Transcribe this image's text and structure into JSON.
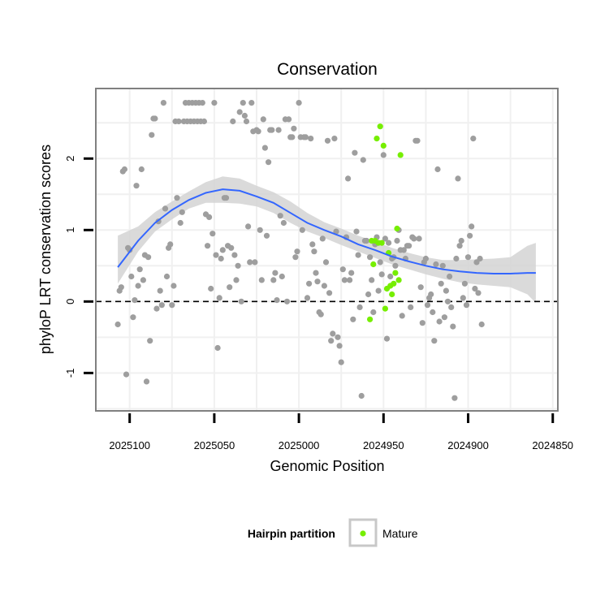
{
  "colors": {
    "background": "#ffffff",
    "grid": "#f0f0f0",
    "panel_border": "#808080",
    "point_other": "#9e9e9e",
    "point_mature": "#76ee00",
    "smooth_line": "#3366ff",
    "confidence_band": "#d3d3d3",
    "zero_line": "#000000",
    "legend_key_border": "#c8c8c8"
  },
  "chart_data": {
    "type": "scatter",
    "title": "Conservation",
    "xlabel": "Genomic Position",
    "ylabel": "phyloP LRT conservation scores",
    "x_reversed": true,
    "xlim": [
      2025120,
      2024847
    ],
    "ylim": [
      -1.53,
      2.98
    ],
    "x_ticks": [
      2025100,
      2025050,
      2025000,
      2024950,
      2024900,
      2024850
    ],
    "x_tick_labels": [
      "2025100",
      "2025050",
      "2025000",
      "2024950",
      "2024900",
      "2024850"
    ],
    "y_ticks": [
      -1,
      0,
      1,
      2
    ],
    "y_tick_labels": [
      "-1",
      "0",
      "1",
      "2"
    ],
    "grid": true,
    "reference_line": {
      "y": 0,
      "style": "dashed"
    },
    "legend": {
      "title": "Hairpin partition",
      "position": "bottom",
      "entries": [
        {
          "label": "Mature",
          "color": "#76ee00"
        }
      ]
    },
    "series": [
      {
        "name": "Other",
        "color": "#9e9e9e",
        "points": [
          [
            2025107,
            -0.32
          ],
          [
            2025106,
            0.15
          ],
          [
            2025105,
            0.2
          ],
          [
            2025104,
            1.82
          ],
          [
            2025103,
            1.85
          ],
          [
            2025102,
            -1.02
          ],
          [
            2025101,
            0.75
          ],
          [
            2025100,
            0.72
          ],
          [
            2025099,
            0.35
          ],
          [
            2025098,
            -0.22
          ],
          [
            2025097,
            0.02
          ],
          [
            2025096,
            1.62
          ],
          [
            2025095,
            0.22
          ],
          [
            2025094,
            0.45
          ],
          [
            2025093,
            1.85
          ],
          [
            2025092,
            0.3
          ],
          [
            2025091,
            0.65
          ],
          [
            2025090,
            -1.12
          ],
          [
            2025089,
            0.62
          ],
          [
            2025088,
            -0.55
          ],
          [
            2025087,
            2.33
          ],
          [
            2025086,
            2.56
          ],
          [
            2025085,
            2.56
          ],
          [
            2025084,
            -0.1
          ],
          [
            2025083,
            1.12
          ],
          [
            2025082,
            0.15
          ],
          [
            2025081,
            -0.05
          ],
          [
            2025080,
            2.78
          ],
          [
            2025079,
            1.3
          ],
          [
            2025078,
            0.35
          ],
          [
            2025077,
            0.75
          ],
          [
            2025076,
            0.8
          ],
          [
            2025075,
            -0.05
          ],
          [
            2025074,
            0.22
          ],
          [
            2025073,
            2.52
          ],
          [
            2025072,
            1.45
          ],
          [
            2025071,
            2.52
          ],
          [
            2025070,
            1.1
          ],
          [
            2025069,
            1.25
          ],
          [
            2025068,
            2.52
          ],
          [
            2025067,
            2.78
          ],
          [
            2025066,
            2.52
          ],
          [
            2025065,
            2.78
          ],
          [
            2025064,
            2.52
          ],
          [
            2025063,
            2.78
          ],
          [
            2025062,
            2.52
          ],
          [
            2025061,
            2.78
          ],
          [
            2025060,
            2.52
          ],
          [
            2025059,
            2.78
          ],
          [
            2025058,
            2.52
          ],
          [
            2025057,
            2.78
          ],
          [
            2025056,
            2.52
          ],
          [
            2025055,
            1.22
          ],
          [
            2025054,
            0.78
          ],
          [
            2025053,
            1.18
          ],
          [
            2025052,
            0.18
          ],
          [
            2025051,
            0.95
          ],
          [
            2025050,
            2.78
          ],
          [
            2025049,
            0.65
          ],
          [
            2025048,
            -0.65
          ],
          [
            2025047,
            0.05
          ],
          [
            2025046,
            0.6
          ],
          [
            2025045,
            0.72
          ],
          [
            2025044,
            1.45
          ],
          [
            2025043,
            1.45
          ],
          [
            2025042,
            0.78
          ],
          [
            2025041,
            0.2
          ],
          [
            2025040,
            0.75
          ],
          [
            2025039,
            2.52
          ],
          [
            2025038,
            0.65
          ],
          [
            2025037,
            0.3
          ],
          [
            2025036,
            0.5
          ],
          [
            2025035,
            2.65
          ],
          [
            2025034,
            0.0
          ],
          [
            2025033,
            2.78
          ],
          [
            2025032,
            2.6
          ],
          [
            2025031,
            2.52
          ],
          [
            2025030,
            1.05
          ],
          [
            2025029,
            0.55
          ],
          [
            2025028,
            2.78
          ],
          [
            2025027,
            2.38
          ],
          [
            2025026,
            0.55
          ],
          [
            2025025,
            2.4
          ],
          [
            2025024,
            2.38
          ],
          [
            2025023,
            1.0
          ],
          [
            2025022,
            0.3
          ],
          [
            2025021,
            2.55
          ],
          [
            2025020,
            2.15
          ],
          [
            2025019,
            0.92
          ],
          [
            2025018,
            1.95
          ],
          [
            2025017,
            2.4
          ],
          [
            2025016,
            2.4
          ],
          [
            2025015,
            0.3
          ],
          [
            2025014,
            0.4
          ],
          [
            2025013,
            0.02
          ],
          [
            2025012,
            2.4
          ],
          [
            2025011,
            1.2
          ],
          [
            2025010,
            0.35
          ],
          [
            2025009,
            1.1
          ],
          [
            2025008,
            2.55
          ],
          [
            2025007,
            0.0
          ],
          [
            2025006,
            2.55
          ],
          [
            2025005,
            2.3
          ],
          [
            2025004,
            2.3
          ],
          [
            2025003,
            2.42
          ],
          [
            2025002,
            0.62
          ],
          [
            2025001,
            0.7
          ],
          [
            2025000,
            2.78
          ],
          [
            2024999,
            2.3
          ],
          [
            2024998,
            1.0
          ],
          [
            2024997,
            2.3
          ],
          [
            2024996,
            2.3
          ],
          [
            2024995,
            0.05
          ],
          [
            2024994,
            0.25
          ],
          [
            2024993,
            2.28
          ],
          [
            2024992,
            0.8
          ],
          [
            2024991,
            0.7
          ],
          [
            2024990,
            0.4
          ],
          [
            2024989,
            0.28
          ],
          [
            2024988,
            -0.15
          ],
          [
            2024987,
            -0.18
          ],
          [
            2024986,
            0.88
          ],
          [
            2024985,
            0.22
          ],
          [
            2024984,
            0.55
          ],
          [
            2024983,
            2.25
          ],
          [
            2024982,
            0.12
          ],
          [
            2024981,
            -0.55
          ],
          [
            2024980,
            -0.45
          ],
          [
            2024979,
            2.28
          ],
          [
            2024978,
            0.98
          ],
          [
            2024977,
            -0.5
          ],
          [
            2024976,
            -0.62
          ],
          [
            2024975,
            -0.85
          ],
          [
            2024974,
            0.45
          ],
          [
            2024973,
            0.3
          ],
          [
            2024972,
            0.9
          ],
          [
            2024971,
            1.72
          ],
          [
            2024970,
            0.3
          ],
          [
            2024969,
            0.4
          ],
          [
            2024968,
            -0.25
          ],
          [
            2024967,
            2.08
          ],
          [
            2024966,
            0.98
          ],
          [
            2024965,
            0.65
          ],
          [
            2024964,
            -0.08
          ],
          [
            2024963,
            -1.32
          ],
          [
            2024962,
            1.98
          ],
          [
            2024961,
            0.85
          ],
          [
            2024960,
            0.85
          ],
          [
            2024959,
            0.1
          ],
          [
            2024958,
            0.62
          ],
          [
            2024957,
            0.3
          ],
          [
            2024956,
            -0.15
          ],
          [
            2024955,
            0.8
          ],
          [
            2024954,
            0.9
          ],
          [
            2024953,
            0.15
          ],
          [
            2024952,
            0.55
          ],
          [
            2024951,
            0.38
          ],
          [
            2024950,
            2.05
          ],
          [
            2024949,
            0.88
          ],
          [
            2024948,
            -0.52
          ],
          [
            2024947,
            0.82
          ],
          [
            2024946,
            0.35
          ],
          [
            2024945,
            0.6
          ],
          [
            2024944,
            0.62
          ],
          [
            2024943,
            0.5
          ],
          [
            2024942,
            0.85
          ],
          [
            2024941,
            1.0
          ],
          [
            2024940,
            0.72
          ],
          [
            2024939,
            -0.2
          ],
          [
            2024938,
            0.72
          ],
          [
            2024937,
            0.6
          ],
          [
            2024936,
            0.78
          ],
          [
            2024935,
            0.78
          ],
          [
            2024934,
            -0.08
          ],
          [
            2024933,
            0.9
          ],
          [
            2024932,
            0.88
          ],
          [
            2024931,
            2.25
          ],
          [
            2024930,
            2.25
          ],
          [
            2024929,
            0.88
          ],
          [
            2024928,
            0.2
          ],
          [
            2024927,
            -0.3
          ],
          [
            2024926,
            0.55
          ],
          [
            2024925,
            0.6
          ],
          [
            2024924,
            -0.05
          ],
          [
            2024923,
            0.05
          ],
          [
            2024922,
            0.1
          ],
          [
            2024921,
            -0.15
          ],
          [
            2024920,
            -0.55
          ],
          [
            2024919,
            0.52
          ],
          [
            2024918,
            1.85
          ],
          [
            2024917,
            -0.28
          ],
          [
            2024916,
            0.25
          ],
          [
            2024915,
            0.5
          ],
          [
            2024914,
            -0.22
          ],
          [
            2024913,
            0.15
          ],
          [
            2024912,
            0.0
          ],
          [
            2024911,
            0.35
          ],
          [
            2024910,
            -0.08
          ],
          [
            2024909,
            -0.35
          ],
          [
            2024908,
            -1.35
          ],
          [
            2024907,
            0.6
          ],
          [
            2024906,
            1.72
          ],
          [
            2024905,
            0.78
          ],
          [
            2024904,
            0.85
          ],
          [
            2024903,
            0.05
          ],
          [
            2024902,
            0.25
          ],
          [
            2024901,
            -0.05
          ],
          [
            2024900,
            0.62
          ],
          [
            2024899,
            0.92
          ],
          [
            2024898,
            1.05
          ],
          [
            2024897,
            2.28
          ],
          [
            2024896,
            0.18
          ],
          [
            2024895,
            0.55
          ],
          [
            2024894,
            0.12
          ],
          [
            2024893,
            0.6
          ],
          [
            2024892,
            -0.32
          ]
        ]
      },
      {
        "name": "Mature",
        "color": "#76ee00",
        "points": [
          [
            2024958,
            -0.25
          ],
          [
            2024957,
            0.85
          ],
          [
            2024956,
            0.52
          ],
          [
            2024955,
            0.85
          ],
          [
            2024954,
            2.28
          ],
          [
            2024953,
            0.82
          ],
          [
            2024952,
            2.45
          ],
          [
            2024951,
            0.82
          ],
          [
            2024950,
            2.18
          ],
          [
            2024949,
            -0.1
          ],
          [
            2024948,
            0.18
          ],
          [
            2024947,
            0.68
          ],
          [
            2024946,
            0.22
          ],
          [
            2024945,
            0.1
          ],
          [
            2024944,
            0.25
          ],
          [
            2024943,
            0.4
          ],
          [
            2024942,
            1.02
          ],
          [
            2024941,
            0.3
          ],
          [
            2024940,
            2.05
          ]
        ]
      }
    ],
    "smooth": {
      "x": [
        2025107,
        2025095,
        2025085,
        2025075,
        2025065,
        2025055,
        2025045,
        2025035,
        2025025,
        2025015,
        2025005,
        2024995,
        2024985,
        2024975,
        2024965,
        2024955,
        2024945,
        2024935,
        2024925,
        2024915,
        2024905,
        2024895,
        2024885,
        2024875,
        2024865,
        2024860
      ],
      "y": [
        0.48,
        0.85,
        1.1,
        1.28,
        1.42,
        1.52,
        1.57,
        1.55,
        1.47,
        1.38,
        1.24,
        1.1,
        1.0,
        0.91,
        0.8,
        0.72,
        0.63,
        0.56,
        0.5,
        0.45,
        0.42,
        0.4,
        0.39,
        0.39,
        0.4,
        0.4
      ],
      "lower": [
        0.25,
        0.7,
        0.98,
        1.15,
        1.3,
        1.38,
        1.38,
        1.37,
        1.33,
        1.24,
        1.1,
        0.98,
        0.89,
        0.79,
        0.7,
        0.61,
        0.52,
        0.45,
        0.38,
        0.32,
        0.27,
        0.24,
        0.22,
        0.2,
        0.1,
        -0.02
      ],
      "upper": [
        0.92,
        1.05,
        1.25,
        1.4,
        1.54,
        1.67,
        1.75,
        1.72,
        1.62,
        1.53,
        1.4,
        1.24,
        1.11,
        1.02,
        0.92,
        0.84,
        0.75,
        0.68,
        0.62,
        0.58,
        0.58,
        0.59,
        0.6,
        0.62,
        0.78,
        0.82
      ]
    }
  }
}
